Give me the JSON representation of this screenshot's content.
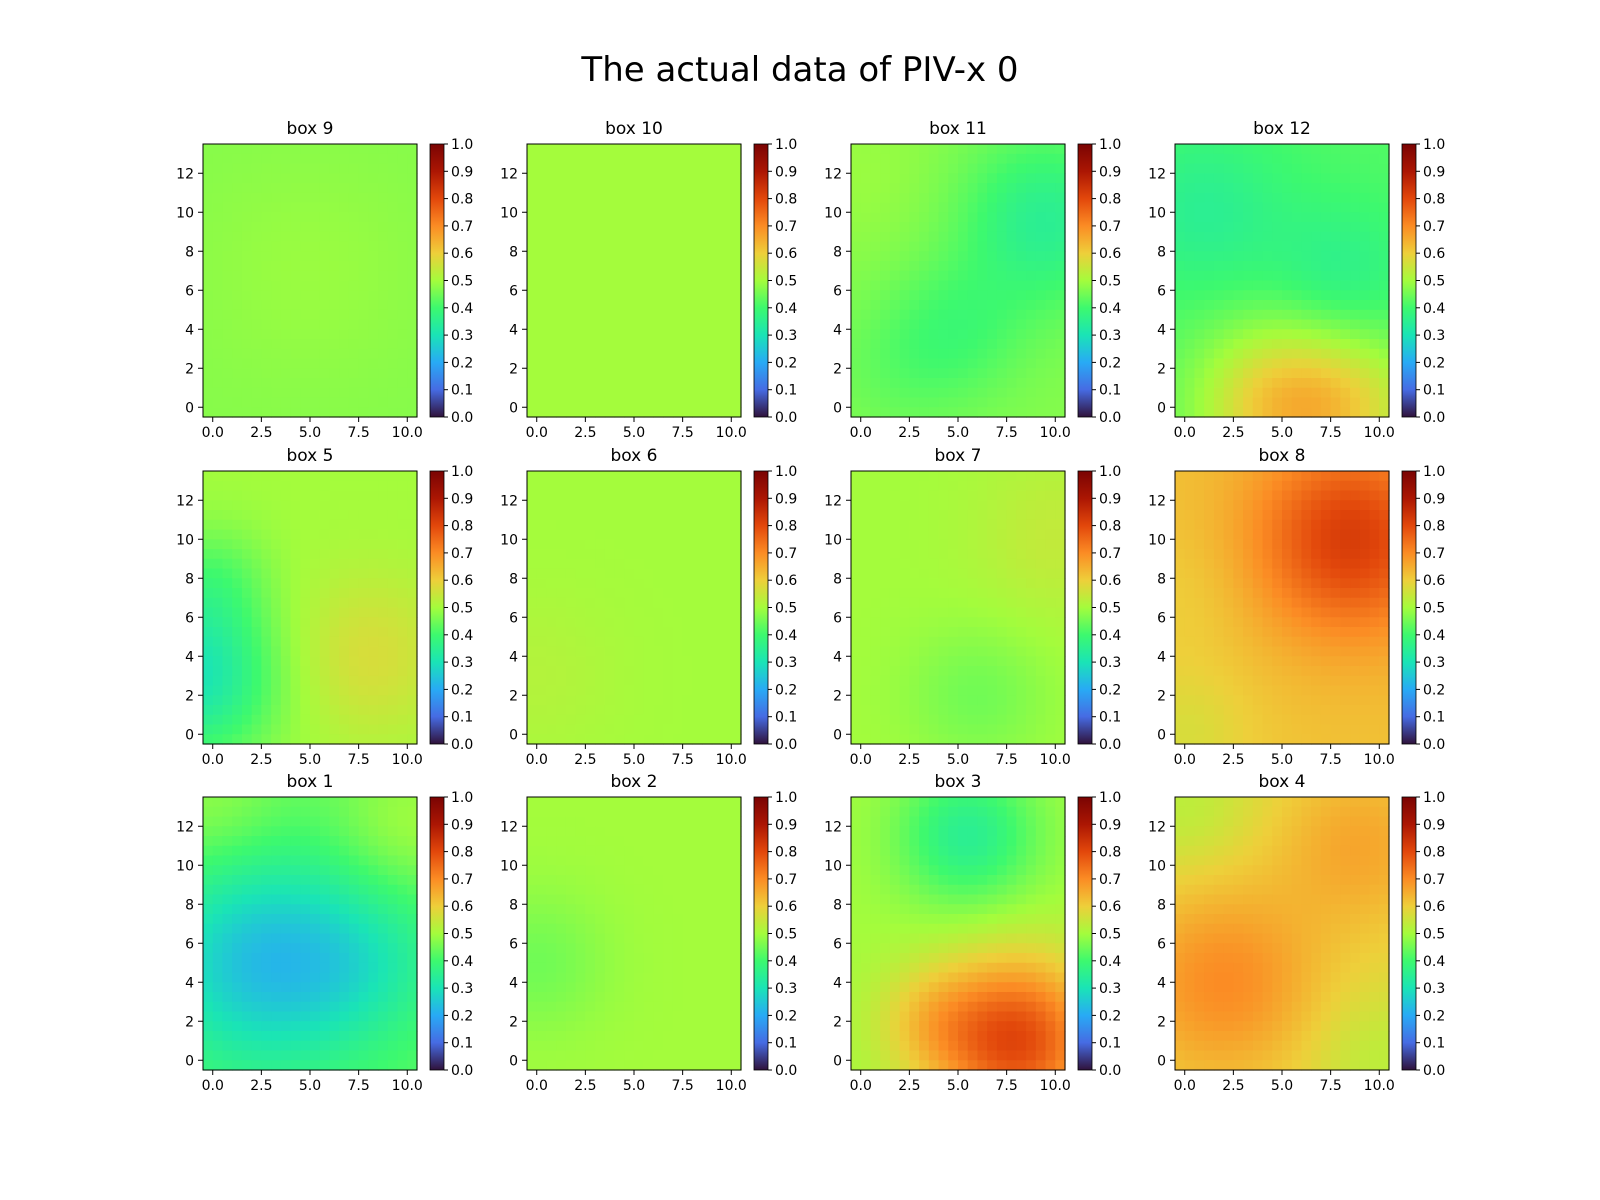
{
  "figure": {
    "title": "The actual data of PIV-x 0"
  },
  "chart_data": {
    "type": "heatmap",
    "colormap": "turbo",
    "value_range": [
      0,
      1
    ],
    "x_range": [
      -0.5,
      10.5
    ],
    "y_range": [
      -0.5,
      13.5
    ],
    "x_ticks": [
      "0.0",
      "2.5",
      "5.0",
      "7.5",
      "10.0"
    ],
    "y_ticks": [
      "0",
      "2",
      "4",
      "6",
      "8",
      "10",
      "12"
    ],
    "colorbar_ticks": [
      "0.0",
      "0.1",
      "0.2",
      "0.3",
      "0.4",
      "0.5",
      "0.6",
      "0.7",
      "0.8",
      "0.9",
      "1.0"
    ],
    "panels": [
      {
        "title": "box 9",
        "base": 0.47,
        "features": [
          [
            5,
            7,
            4,
            0.02
          ]
        ]
      },
      {
        "title": "box 10",
        "base": 0.5,
        "features": []
      },
      {
        "title": "box 11",
        "base": 0.47,
        "features": [
          [
            9.5,
            9.5,
            3,
            -0.12
          ],
          [
            5,
            4,
            2.5,
            -0.06
          ],
          [
            2,
            2,
            2.5,
            -0.03
          ],
          [
            0,
            12,
            3,
            0.02
          ]
        ]
      },
      {
        "title": "box 12",
        "base": 0.42,
        "features": [
          [
            1,
            10,
            3,
            -0.07
          ],
          [
            8,
            7,
            2.5,
            -0.06
          ],
          [
            5,
            0,
            3,
            0.2
          ],
          [
            9,
            0,
            2.5,
            0.1
          ]
        ]
      },
      {
        "title": "box 5",
        "base": 0.5,
        "features": [
          [
            -1,
            3,
            3,
            -0.2
          ],
          [
            8,
            4,
            3,
            0.07
          ],
          [
            0,
            8,
            2,
            -0.06
          ]
        ]
      },
      {
        "title": "box 6",
        "base": 0.5,
        "features": [
          [
            0,
            3,
            3,
            0.02
          ]
        ]
      },
      {
        "title": "box 7",
        "base": 0.5,
        "features": [
          [
            6,
            2,
            2.5,
            -0.05
          ],
          [
            10,
            10,
            3,
            0.04
          ]
        ]
      },
      {
        "title": "box 8",
        "base": 0.62,
        "features": [
          [
            8.5,
            10,
            3.5,
            0.2
          ],
          [
            0,
            0,
            2.5,
            -0.05
          ],
          [
            0,
            7,
            2.5,
            -0.02
          ]
        ]
      },
      {
        "title": "box 1",
        "base": 0.44,
        "features": [
          [
            2.5,
            5,
            4,
            -0.2
          ],
          [
            8,
            5,
            3,
            -0.08
          ],
          [
            10,
            12,
            2.5,
            0.06
          ],
          [
            0,
            13,
            2.5,
            0.05
          ]
        ]
      },
      {
        "title": "box 2",
        "base": 0.5,
        "features": [
          [
            0,
            5,
            2.5,
            -0.05
          ]
        ]
      },
      {
        "title": "box 3",
        "base": 0.5,
        "features": [
          [
            5.5,
            11.5,
            2.5,
            -0.15
          ],
          [
            8,
            1,
            3,
            0.3
          ],
          [
            3.5,
            2,
            2,
            0.08
          ]
        ]
      },
      {
        "title": "box 4",
        "base": 0.58,
        "features": [
          [
            2,
            4,
            3.5,
            0.12
          ],
          [
            9,
            11,
            3,
            0.08
          ],
          [
            10,
            0,
            2.5,
            -0.05
          ],
          [
            0,
            13,
            2.5,
            -0.05
          ]
        ]
      }
    ]
  }
}
